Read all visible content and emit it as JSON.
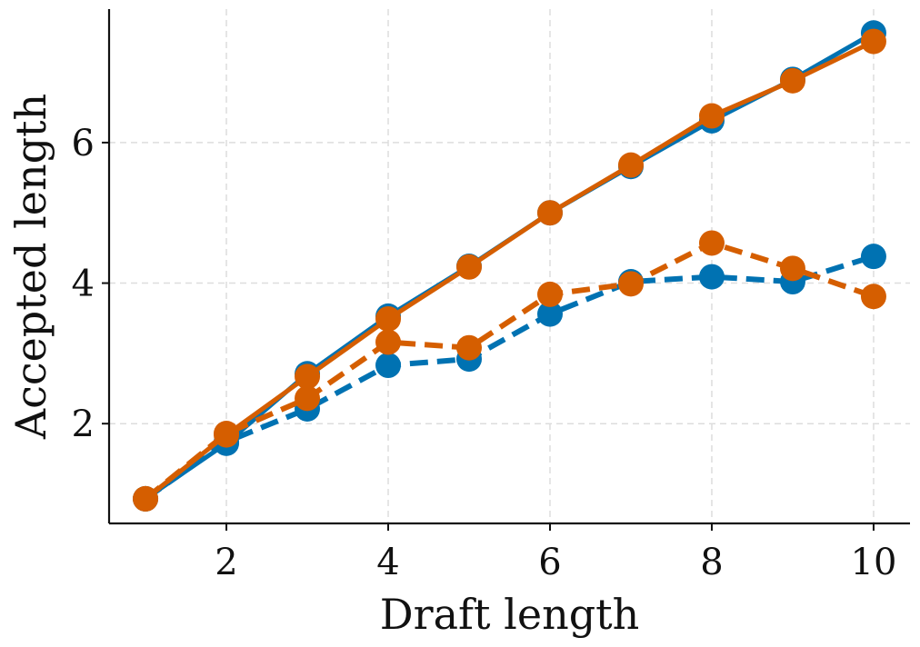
{
  "chart_data": {
    "type": "line",
    "title": "",
    "xlabel": "Draft length",
    "ylabel": "Accepted length",
    "xlim": [
      0.55,
      10.45
    ],
    "ylim": [
      0.58,
      7.9
    ],
    "xticks": [
      2,
      4,
      6,
      8,
      10
    ],
    "yticks": [
      2,
      4,
      6
    ],
    "grid": true,
    "x": [
      1,
      2,
      3,
      4,
      5,
      6,
      7,
      8,
      9,
      10
    ],
    "series": [
      {
        "color": "#0072B2",
        "style": "solid",
        "values": [
          0.93,
          1.72,
          2.71,
          3.53,
          4.24,
          5.0,
          5.66,
          6.31,
          6.9,
          7.56
        ]
      },
      {
        "color": "#0072B2",
        "style": "dashed",
        "values": [
          0.93,
          1.74,
          2.21,
          2.83,
          2.92,
          3.56,
          4.02,
          4.09,
          4.02,
          4.38
        ]
      },
      {
        "color": "#D55E00",
        "style": "solid",
        "values": [
          0.93,
          1.84,
          2.67,
          3.49,
          4.23,
          5.0,
          5.68,
          6.38,
          6.88,
          7.44
        ]
      },
      {
        "color": "#D55E00",
        "style": "dashed",
        "values": [
          0.93,
          1.86,
          2.36,
          3.16,
          3.08,
          3.84,
          3.99,
          4.57,
          4.21,
          3.81
        ]
      }
    ]
  }
}
